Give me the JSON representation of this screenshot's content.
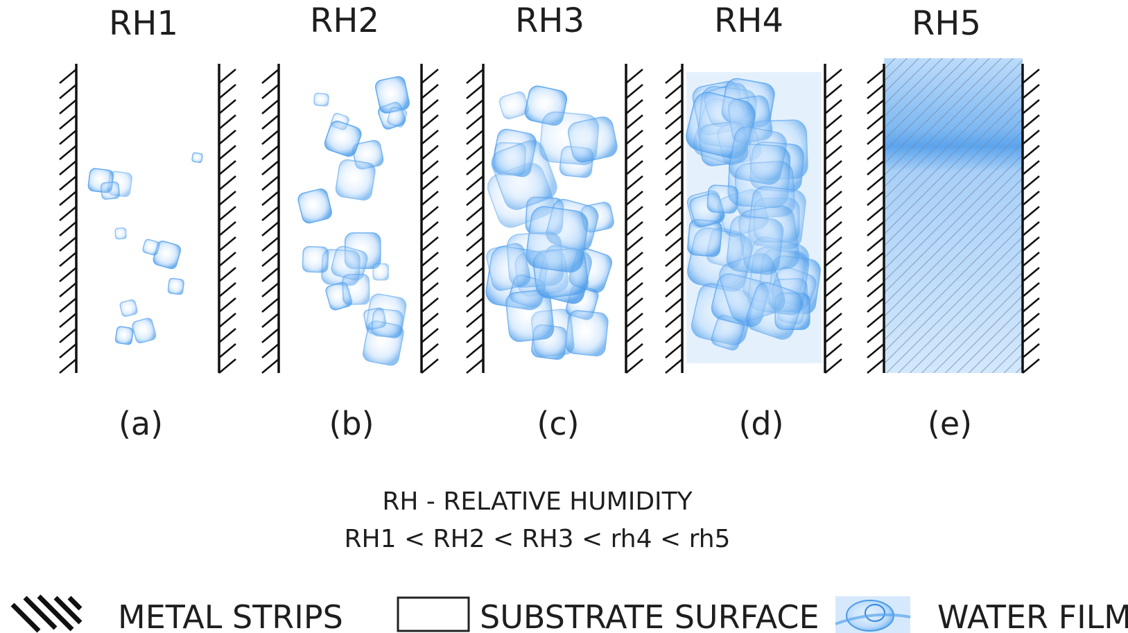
{
  "panels": [
    {
      "title": "RH1",
      "label": "(a)",
      "stage": 1
    },
    {
      "title": "RH2",
      "label": "(b)",
      "stage": 2
    },
    {
      "title": "RH3",
      "label": "(c)",
      "stage": 3
    },
    {
      "title": "RH4",
      "label": "(d)",
      "stage": 4
    },
    {
      "title": "RH5",
      "label": "(e)",
      "stage": 5
    }
  ],
  "caption": {
    "line1": "RH - RELATIVE HUMIDITY",
    "line2": "RH1 < RH2 < RH3 < rh4 < rh5"
  },
  "legend": {
    "metal_strips": "METAL STRIPS",
    "substrate_surface": "SUBSTRATE SURFACE",
    "water_film": "WATER FILM"
  },
  "colors": {
    "water": "#4a9be8",
    "water_light": "#cfe5fb",
    "metal": "#111111"
  }
}
